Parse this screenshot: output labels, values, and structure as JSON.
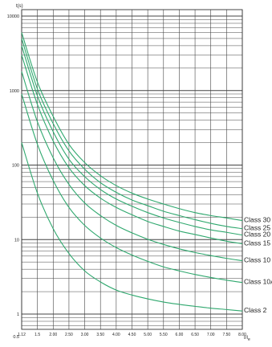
{
  "chart_data": {
    "type": "line",
    "title": "",
    "ylabel": "t(s)",
    "xlabel": "I/Ie",
    "xlabel_main": "I/I",
    "xlabel_sub": "e",
    "y_scale": "log",
    "ylim": [
      0.5,
      10000
    ],
    "y_ticks": [
      {
        "value": 0.5,
        "label": "0.5"
      },
      {
        "value": 1,
        "label": "1"
      },
      {
        "value": 10,
        "label": "10"
      },
      {
        "value": 100,
        "label": "100"
      },
      {
        "value": 1000,
        "label": "1000"
      },
      {
        "value": 10000,
        "label": "10000"
      }
    ],
    "x_ticks": [
      "1.12",
      "1.5",
      "2.00",
      "2.50",
      "3.00",
      "3.50",
      "4.00",
      "4.50",
      "5.00",
      "5.50",
      "6.00",
      "6.50",
      "7.00",
      "7.50",
      "8.00"
    ],
    "grid": true,
    "line_color": "#2fa86e",
    "series": [
      {
        "name": "Class 30",
        "values": [
          6000,
          1300,
          450,
          190,
          108,
          72,
          53,
          42,
          35,
          30,
          26,
          23,
          21,
          19.5,
          18
        ]
      },
      {
        "name": "Class 25",
        "values": [
          5000,
          1050,
          360,
          155,
          88,
          58,
          43,
          34,
          28.5,
          24,
          21,
          18.5,
          16.5,
          15,
          14
        ]
      },
      {
        "name": "Class 20",
        "values": [
          4000,
          850,
          280,
          120,
          70,
          47,
          35,
          28,
          23,
          19.5,
          17,
          15,
          13.5,
          12.5,
          11.5
        ]
      },
      {
        "name": "Class 15",
        "values": [
          3000,
          650,
          210,
          92,
          53,
          36,
          27,
          21.5,
          17.5,
          15,
          13,
          11.7,
          10.5,
          9.5,
          8.8
        ]
      },
      {
        "name": "Class 10",
        "values": [
          1800,
          380,
          125,
          55,
          31,
          21,
          15.5,
          12.3,
          10.1,
          8.6,
          7.5,
          6.7,
          6.1,
          5.6,
          5.2
        ]
      },
      {
        "name": "Class 10A",
        "values": [
          900,
          190,
          62,
          27,
          15.5,
          10.5,
          7.8,
          6.2,
          5.1,
          4.3,
          3.8,
          3.4,
          3.1,
          2.85,
          2.65
        ]
      },
      {
        "name": "Class 2",
        "values": [
          200,
          42,
          14,
          6.5,
          3.8,
          2.7,
          2.1,
          1.8,
          1.6,
          1.45,
          1.35,
          1.27,
          1.2,
          1.15,
          1.1
        ]
      }
    ]
  }
}
